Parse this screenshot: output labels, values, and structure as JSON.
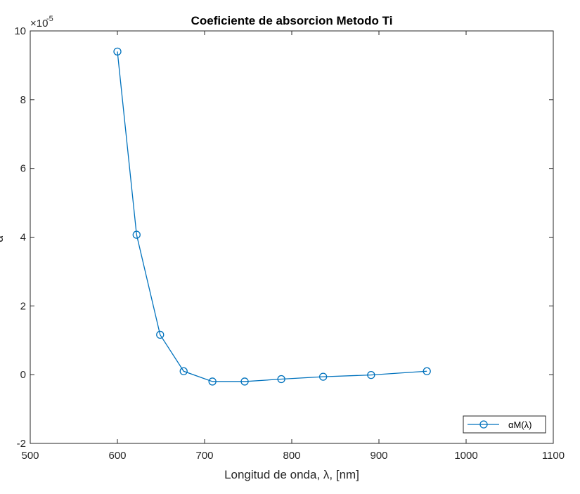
{
  "chart_data": {
    "type": "line",
    "title": "Coeficiente de absorcion Metodo Ti",
    "xlabel": "Longitud  de  onda,  λ,  [nm]",
    "ylabel": "α",
    "xlim": [
      500,
      1100
    ],
    "ylim": [
      -2,
      10
    ],
    "y_multiplier_base": "×10",
    "y_multiplier_exp": "-5",
    "x_ticks": [
      "500",
      "600",
      "700",
      "800",
      "900",
      "1000",
      "1100"
    ],
    "y_ticks": [
      "-2",
      "0",
      "2",
      "4",
      "6",
      "8",
      "10"
    ],
    "grid": false,
    "legend_position": "bottom-right",
    "series": [
      {
        "name": "αM(λ)",
        "color": "#0072BD",
        "marker": "circle",
        "x": [
          600,
          622,
          649,
          676,
          709,
          746,
          788,
          836,
          891,
          955
        ],
        "y": [
          9.4,
          4.07,
          1.16,
          0.1,
          -0.2,
          -0.2,
          -0.13,
          -0.06,
          -0.01,
          0.1
        ]
      }
    ]
  }
}
